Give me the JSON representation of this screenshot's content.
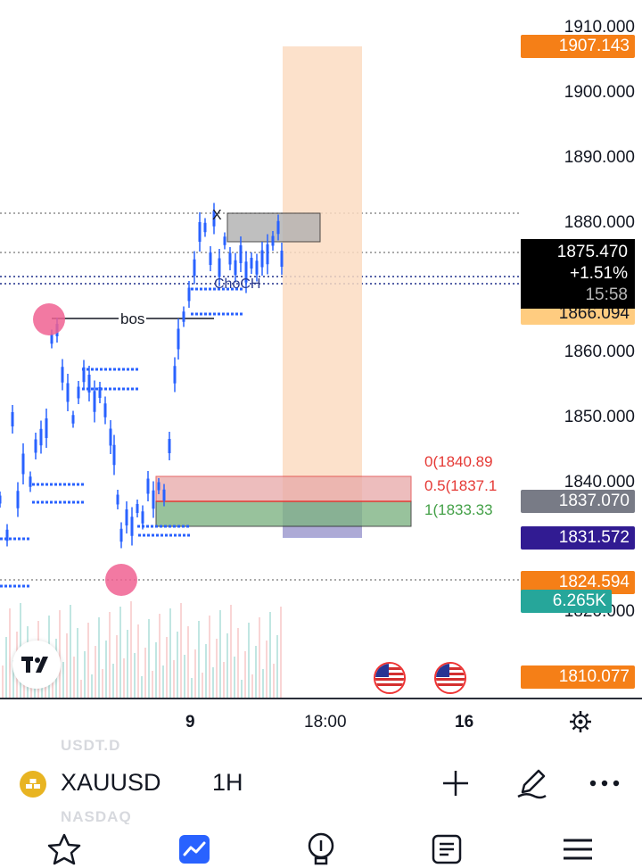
{
  "price_axis": {
    "labels": [
      "1910.000",
      "1900.000",
      "1890.000",
      "1880.000",
      "1860.000",
      "1850.000",
      "1840.000",
      "1820.000"
    ],
    "badges": [
      {
        "text": "1907.143",
        "color": "#f57f17"
      },
      {
        "text": "1866.094",
        "color": "#ffcc80"
      },
      {
        "text": "1837.070",
        "color": "#787b86"
      },
      {
        "text": "1831.572",
        "color": "#311b92"
      },
      {
        "text": "1824.594",
        "color": "#f57f17"
      },
      {
        "text": "6.265K",
        "color": "#26a69a"
      },
      {
        "text": "1810.077",
        "color": "#f57f17"
      }
    ],
    "current_price": {
      "price": "1875.470",
      "change": "+1.51%",
      "countdown": "15:58"
    }
  },
  "annotations": {
    "bos": "bos",
    "choch": "ChoCH",
    "x_mark": "X",
    "fib": [
      {
        "text": "0(1840.89",
        "color": "#e53935"
      },
      {
        "text": "0.5(1837.1",
        "color": "#e53935"
      },
      {
        "text": "1(1833.33",
        "color": "#43a047"
      }
    ]
  },
  "time_axis": {
    "labels": [
      {
        "text": "9",
        "bold": true
      },
      {
        "text": "18:00",
        "bold": false
      },
      {
        "text": "16",
        "bold": true
      }
    ]
  },
  "symbol_bar": {
    "ghost_above": "USDT.D",
    "ghost_below": "NASDAQ",
    "symbol": "XAUUSD",
    "timeframe": "1H"
  },
  "colors": {
    "candle_blue": "#2962ff",
    "volume_teal": "#a7dcd5",
    "volume_red": "#f6c3c3",
    "range_box": "#fcdcc2",
    "demand_green": "#7fb384",
    "demand_red": "#e7a8a8",
    "marker_pink": "#f06292"
  },
  "icons": {
    "settings": "gear-icon",
    "add": "plus-icon",
    "draw": "pen-icon",
    "more": "more-dots-icon",
    "nav": [
      "star-icon",
      "chart-icon",
      "lightbulb-icon",
      "news-icon",
      "menu-icon"
    ]
  }
}
